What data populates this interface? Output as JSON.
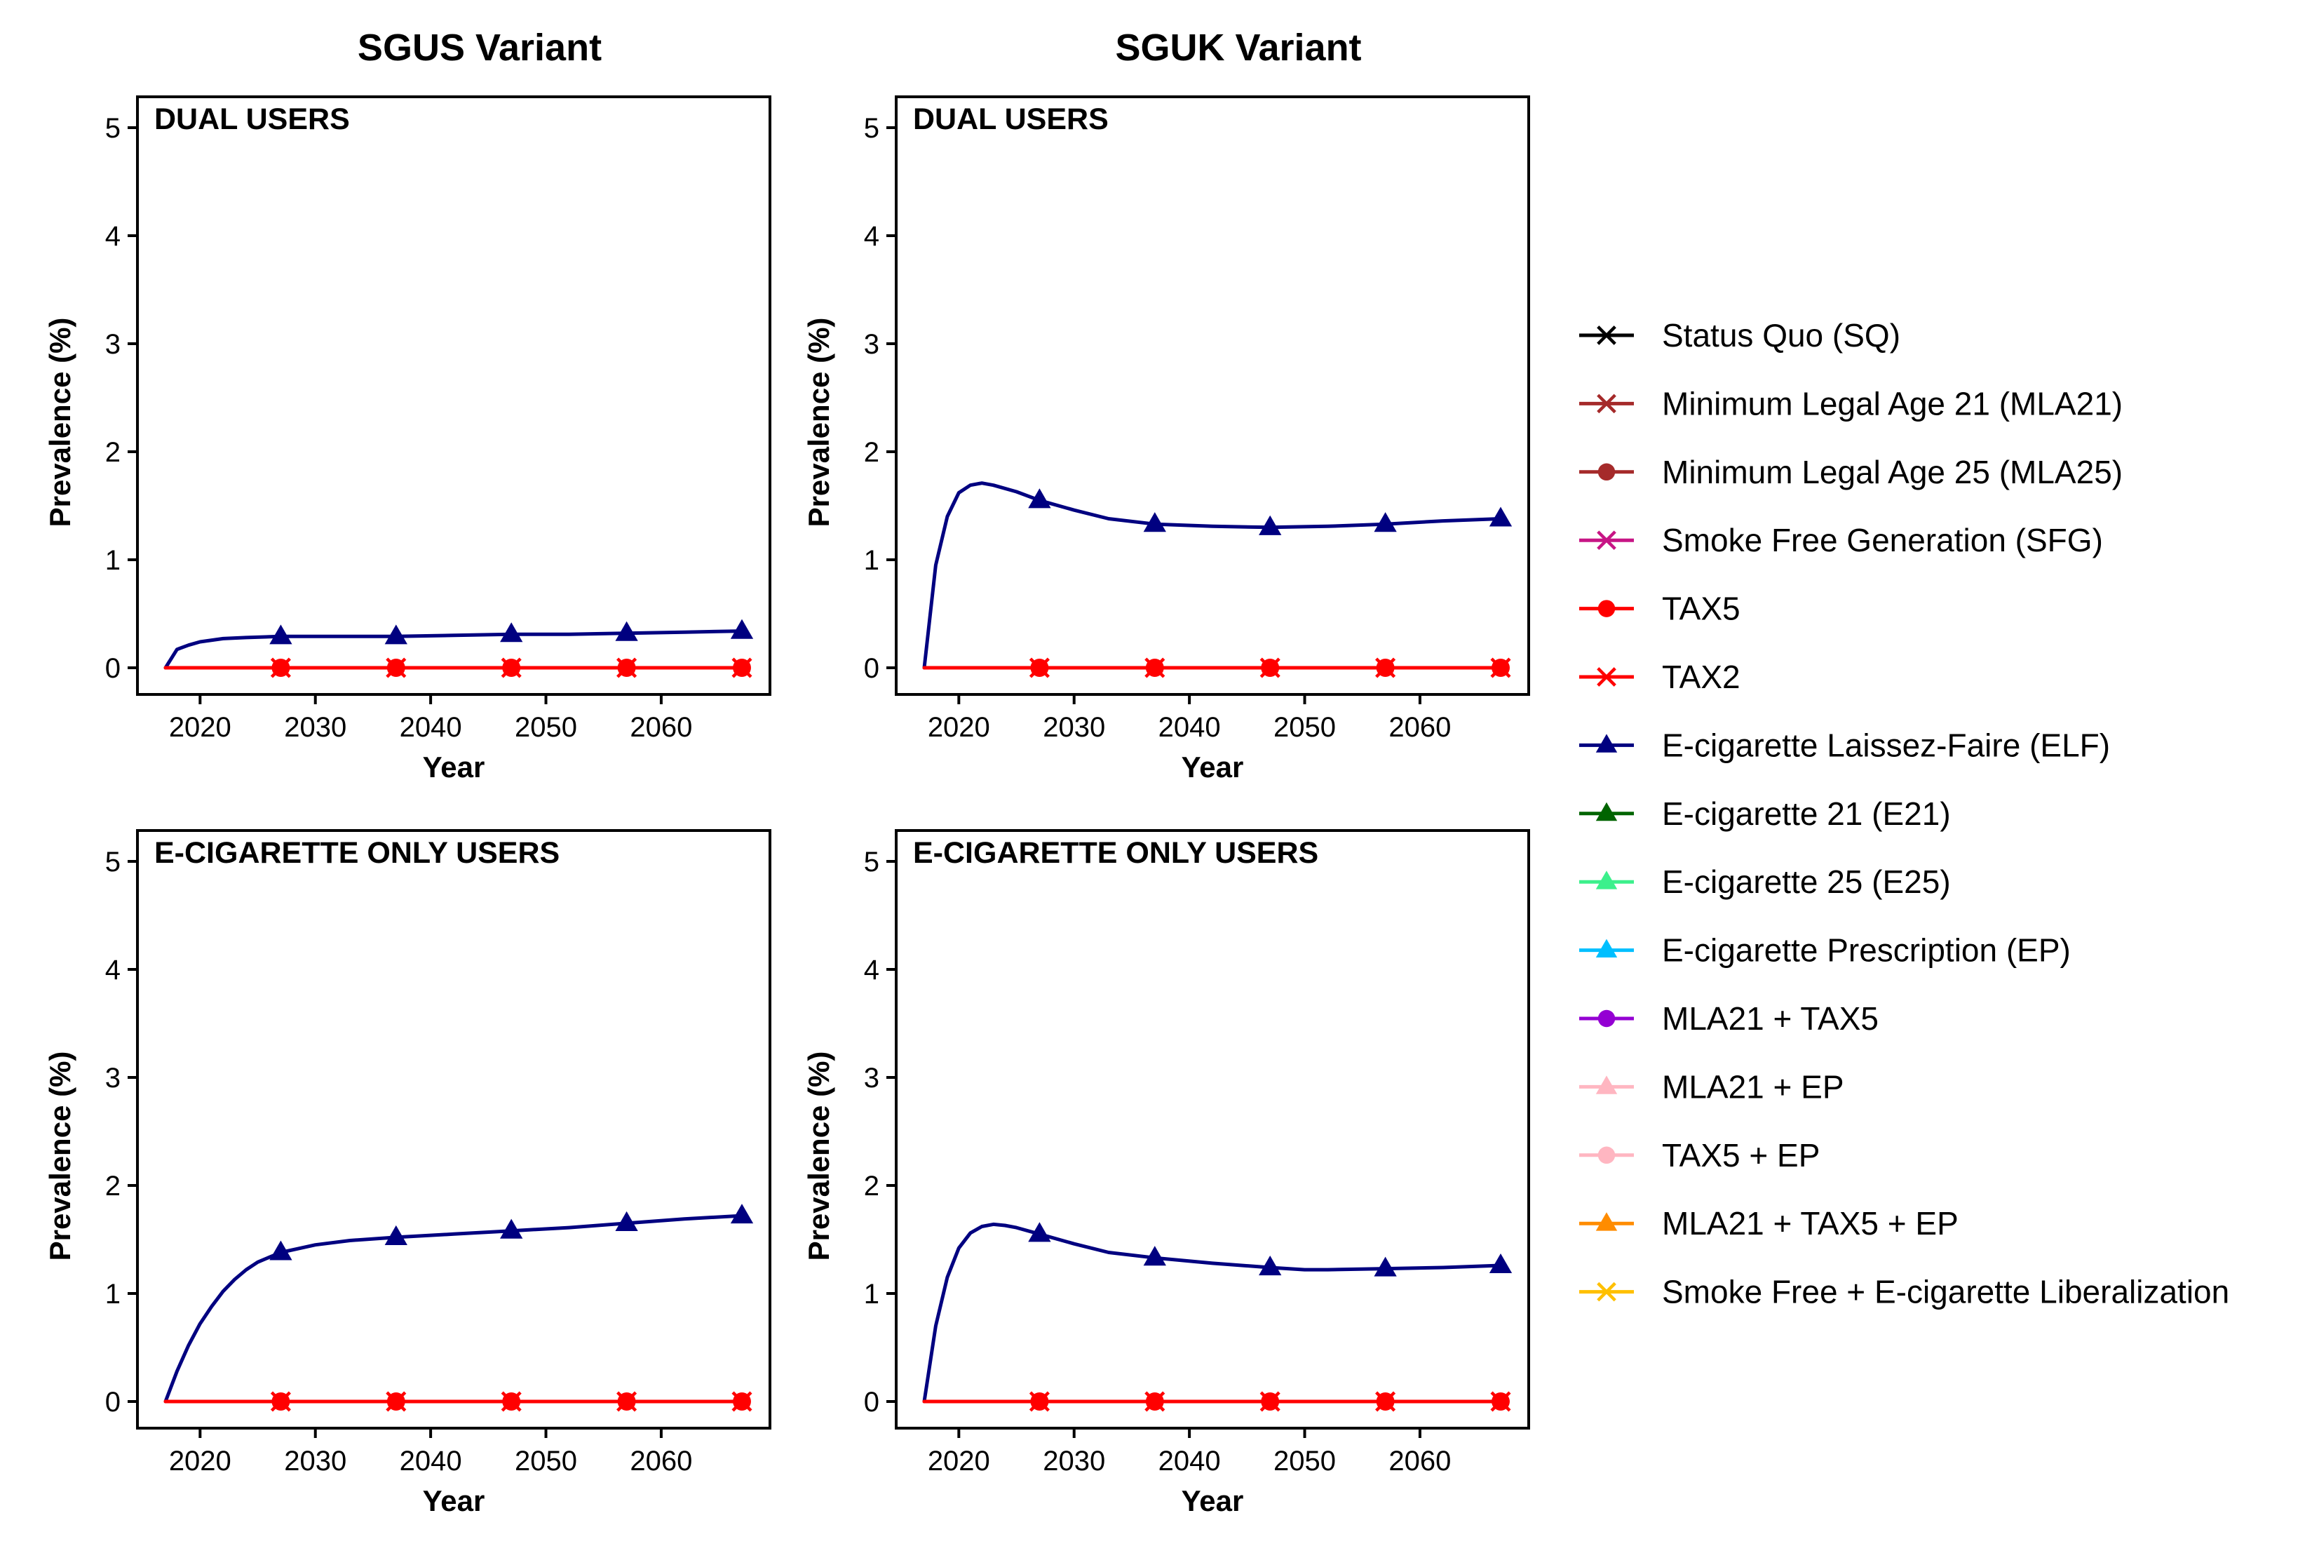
{
  "figure": {
    "column_titles": [
      "SGUS Variant",
      "SGUK Variant"
    ]
  },
  "legend": [
    {
      "label": "Status Quo (SQ)",
      "color": "#000000",
      "marker": "cross"
    },
    {
      "label": "Minimum Legal Age 21 (MLA21)",
      "color": "#a52a2a",
      "marker": "cross"
    },
    {
      "label": "Minimum Legal Age 25 (MLA25)",
      "color": "#a52a2a",
      "marker": "circle"
    },
    {
      "label": "Smoke Free Generation (SFG)",
      "color": "#c71585",
      "marker": "cross"
    },
    {
      "label": "TAX5",
      "color": "#ff0000",
      "marker": "circle"
    },
    {
      "label": "TAX2",
      "color": "#ff0000",
      "marker": "cross"
    },
    {
      "label": "E-cigarette Laissez-Faire (ELF)",
      "color": "#000080",
      "marker": "triangle"
    },
    {
      "label": "E-cigarette 21 (E21)",
      "color": "#006400",
      "marker": "triangle"
    },
    {
      "label": "E-cigarette 25 (E25)",
      "color": "#3cf08c",
      "marker": "triangle"
    },
    {
      "label": "E-cigarette Prescription (EP)",
      "color": "#00bfff",
      "marker": "triangle"
    },
    {
      "label": "MLA21 + TAX5",
      "color": "#9400d3",
      "marker": "circle"
    },
    {
      "label": "MLA21 + EP",
      "color": "#ffb6c1",
      "marker": "triangle"
    },
    {
      "label": "TAX5 + EP",
      "color": "#ffb6c1",
      "marker": "circle"
    },
    {
      "label": "MLA21 + TAX5 + EP",
      "color": "#ff8c00",
      "marker": "triangle"
    },
    {
      "label": "Smoke Free + E-cigarette Liberalization",
      "color": "#ffc000",
      "marker": "cross"
    }
  ],
  "chart_data": [
    {
      "type": "line",
      "column": "SGUS Variant",
      "title": "DUAL USERS",
      "xlabel": "Year",
      "ylabel": "Prevalence (%)",
      "xlim": [
        2017,
        2067
      ],
      "ylim": [
        0,
        5
      ],
      "xticks": [
        "2020",
        "2030",
        "2040",
        "2050",
        "2060"
      ],
      "yticks": [
        "0",
        "1",
        "2",
        "3",
        "4",
        "5"
      ],
      "grid": false,
      "series": [
        {
          "name": "E-cigarette Laissez-Faire (ELF)",
          "color": "#000080",
          "marker": "triangle",
          "x": [
            2017,
            2018,
            2019,
            2020,
            2022,
            2024,
            2027,
            2032,
            2037,
            2042,
            2047,
            2052,
            2057,
            2062,
            2067
          ],
          "y": [
            0.0,
            0.17,
            0.21,
            0.24,
            0.27,
            0.28,
            0.29,
            0.29,
            0.29,
            0.3,
            0.31,
            0.31,
            0.32,
            0.33,
            0.34
          ],
          "markers_x": [
            2027,
            2037,
            2047,
            2057,
            2067
          ]
        },
        {
          "name": "TAX5",
          "color": "#ff0000",
          "marker": "circle",
          "x": [
            2017,
            2067
          ],
          "y": [
            0,
            0
          ],
          "markers_x": [
            2027,
            2037,
            2047,
            2057,
            2067
          ]
        },
        {
          "name": "TAX2",
          "color": "#ff0000",
          "marker": "cross",
          "x": [
            2017,
            2067
          ],
          "y": [
            0,
            0
          ],
          "markers_x": [
            2027,
            2037,
            2047,
            2057,
            2067
          ]
        }
      ]
    },
    {
      "type": "line",
      "column": "SGUK Variant",
      "title": "DUAL USERS",
      "xlabel": "Year",
      "ylabel": "Prevalence (%)",
      "xlim": [
        2017,
        2067
      ],
      "ylim": [
        0,
        5
      ],
      "xticks": [
        "2020",
        "2030",
        "2040",
        "2050",
        "2060"
      ],
      "yticks": [
        "0",
        "1",
        "2",
        "3",
        "4",
        "5"
      ],
      "grid": false,
      "series": [
        {
          "name": "E-cigarette Laissez-Faire (ELF)",
          "color": "#000080",
          "marker": "triangle",
          "x": [
            2017,
            2018,
            2019,
            2020,
            2021,
            2022,
            2023,
            2025,
            2027,
            2030,
            2033,
            2037,
            2042,
            2047,
            2052,
            2057,
            2062,
            2067
          ],
          "y": [
            0.0,
            0.95,
            1.4,
            1.62,
            1.69,
            1.71,
            1.69,
            1.63,
            1.55,
            1.46,
            1.38,
            1.33,
            1.31,
            1.3,
            1.31,
            1.33,
            1.36,
            1.38
          ],
          "markers_x": [
            2027,
            2037,
            2047,
            2057,
            2067
          ]
        },
        {
          "name": "TAX5",
          "color": "#ff0000",
          "marker": "circle",
          "x": [
            2017,
            2067
          ],
          "y": [
            0,
            0
          ],
          "markers_x": [
            2027,
            2037,
            2047,
            2057,
            2067
          ]
        },
        {
          "name": "TAX2",
          "color": "#ff0000",
          "marker": "cross",
          "x": [
            2017,
            2067
          ],
          "y": [
            0,
            0
          ],
          "markers_x": [
            2027,
            2037,
            2047,
            2057,
            2067
          ]
        }
      ]
    },
    {
      "type": "line",
      "column": "SGUS Variant",
      "title": "E-CIGARETTE ONLY USERS",
      "xlabel": "Year",
      "ylabel": "Prevalence (%)",
      "xlim": [
        2017,
        2067
      ],
      "ylim": [
        0,
        5
      ],
      "xticks": [
        "2020",
        "2030",
        "2040",
        "2050",
        "2060"
      ],
      "yticks": [
        "0",
        "1",
        "2",
        "3",
        "4",
        "5"
      ],
      "grid": false,
      "series": [
        {
          "name": "E-cigarette Laissez-Faire (ELF)",
          "color": "#000080",
          "marker": "triangle",
          "x": [
            2017,
            2018,
            2019,
            2020,
            2021,
            2022,
            2023,
            2024,
            2025,
            2027,
            2030,
            2033,
            2037,
            2042,
            2047,
            2052,
            2057,
            2062,
            2067
          ],
          "y": [
            0.0,
            0.28,
            0.52,
            0.72,
            0.88,
            1.02,
            1.13,
            1.22,
            1.29,
            1.38,
            1.45,
            1.49,
            1.52,
            1.55,
            1.58,
            1.61,
            1.65,
            1.69,
            1.72
          ],
          "markers_x": [
            2027,
            2037,
            2047,
            2057,
            2067
          ]
        },
        {
          "name": "TAX5",
          "color": "#ff0000",
          "marker": "circle",
          "x": [
            2017,
            2067
          ],
          "y": [
            0,
            0
          ],
          "markers_x": [
            2027,
            2037,
            2047,
            2057,
            2067
          ]
        },
        {
          "name": "TAX2",
          "color": "#ff0000",
          "marker": "cross",
          "x": [
            2017,
            2067
          ],
          "y": [
            0,
            0
          ],
          "markers_x": [
            2027,
            2037,
            2047,
            2057,
            2067
          ]
        }
      ]
    },
    {
      "type": "line",
      "column": "SGUK Variant",
      "title": "E-CIGARETTE ONLY USERS",
      "xlabel": "Year",
      "ylabel": "Prevalence (%)",
      "xlim": [
        2017,
        2067
      ],
      "ylim": [
        0,
        5
      ],
      "xticks": [
        "2020",
        "2030",
        "2040",
        "2050",
        "2060"
      ],
      "yticks": [
        "0",
        "1",
        "2",
        "3",
        "4",
        "5"
      ],
      "grid": false,
      "series": [
        {
          "name": "E-cigarette Laissez-Faire (ELF)",
          "color": "#000080",
          "marker": "triangle",
          "x": [
            2017,
            2018,
            2019,
            2020,
            2021,
            2022,
            2023,
            2024,
            2025,
            2027,
            2030,
            2033,
            2037,
            2042,
            2047,
            2050,
            2052,
            2057,
            2062,
            2067
          ],
          "y": [
            0.0,
            0.7,
            1.15,
            1.42,
            1.56,
            1.62,
            1.64,
            1.63,
            1.61,
            1.55,
            1.46,
            1.38,
            1.33,
            1.28,
            1.24,
            1.22,
            1.22,
            1.23,
            1.24,
            1.26
          ],
          "markers_x": [
            2027,
            2037,
            2047,
            2057,
            2067
          ]
        },
        {
          "name": "TAX5",
          "color": "#ff0000",
          "marker": "circle",
          "x": [
            2017,
            2067
          ],
          "y": [
            0,
            0
          ],
          "markers_x": [
            2027,
            2037,
            2047,
            2057,
            2067
          ]
        },
        {
          "name": "TAX2",
          "color": "#ff0000",
          "marker": "cross",
          "x": [
            2017,
            2067
          ],
          "y": [
            0,
            0
          ],
          "markers_x": [
            2027,
            2037,
            2047,
            2057,
            2067
          ]
        }
      ]
    }
  ]
}
